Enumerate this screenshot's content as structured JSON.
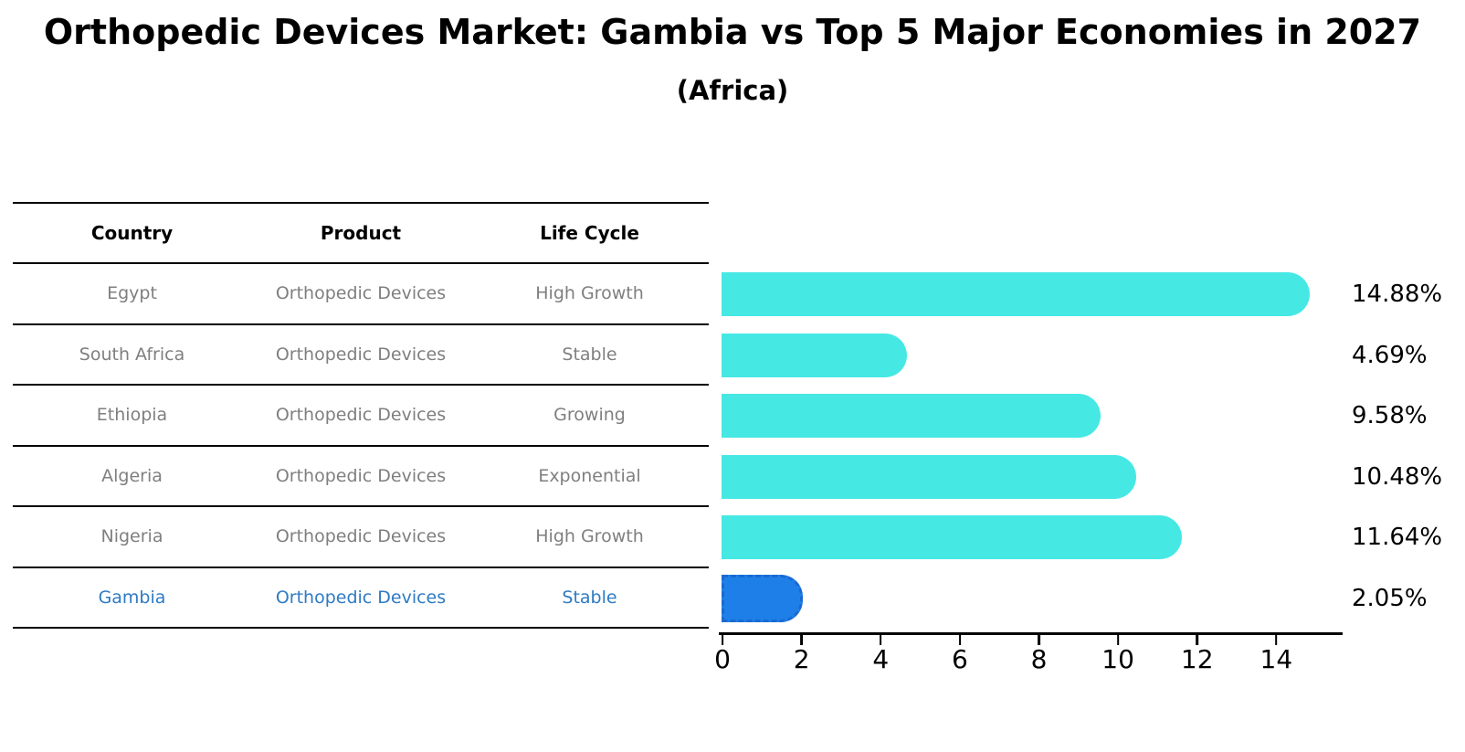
{
  "title": "Orthopedic Devices Market: Gambia vs Top 5 Major Economies in 2027",
  "subtitle": "(Africa)",
  "table": {
    "headers": [
      "Country",
      "Product",
      "Life Cycle"
    ],
    "rows": [
      {
        "country": "Egypt",
        "product": "Orthopedic Devices",
        "life_cycle": "High Growth"
      },
      {
        "country": "South Africa",
        "product": "Orthopedic Devices",
        "life_cycle": "Stable"
      },
      {
        "country": "Ethiopia",
        "product": "Orthopedic Devices",
        "life_cycle": "Growing"
      },
      {
        "country": "Algeria",
        "product": "Orthopedic Devices",
        "life_cycle": "Exponential"
      },
      {
        "country": "Nigeria",
        "product": "Orthopedic Devices",
        "life_cycle": "High Growth"
      },
      {
        "country": "Gambia",
        "product": "Orthopedic Devices",
        "life_cycle": "Stable"
      }
    ],
    "highlighted_row": "Gambia"
  },
  "chart_data": {
    "type": "bar",
    "orientation": "horizontal",
    "title": "Orthopedic Devices Market: Gambia vs Top 5 Major Economies in 2027",
    "subtitle": "(Africa)",
    "categories": [
      "Egypt",
      "South Africa",
      "Ethiopia",
      "Algeria",
      "Nigeria",
      "Gambia"
    ],
    "values": [
      14.88,
      4.69,
      9.58,
      10.48,
      11.64,
      2.05
    ],
    "labels": [
      "14.88%",
      "4.69%",
      "9.58%",
      "10.48%",
      "11.64%",
      "2.05%"
    ],
    "xlabel": "",
    "ylabel": "",
    "xticks": [
      0,
      2,
      4,
      6,
      8,
      10,
      12,
      14
    ],
    "xlim": [
      0,
      15.7
    ],
    "grid": false,
    "legend": false,
    "highlight_index": 5
  },
  "colors": {
    "bar_color": "#46E8E4",
    "highlight_bar_color": "#1E7FE8",
    "highlight_bar_border": "#1B69D2",
    "highlight_text": "#2E7AC4",
    "muted_text": "#7F7F7F",
    "heading_text": "#000000"
  }
}
